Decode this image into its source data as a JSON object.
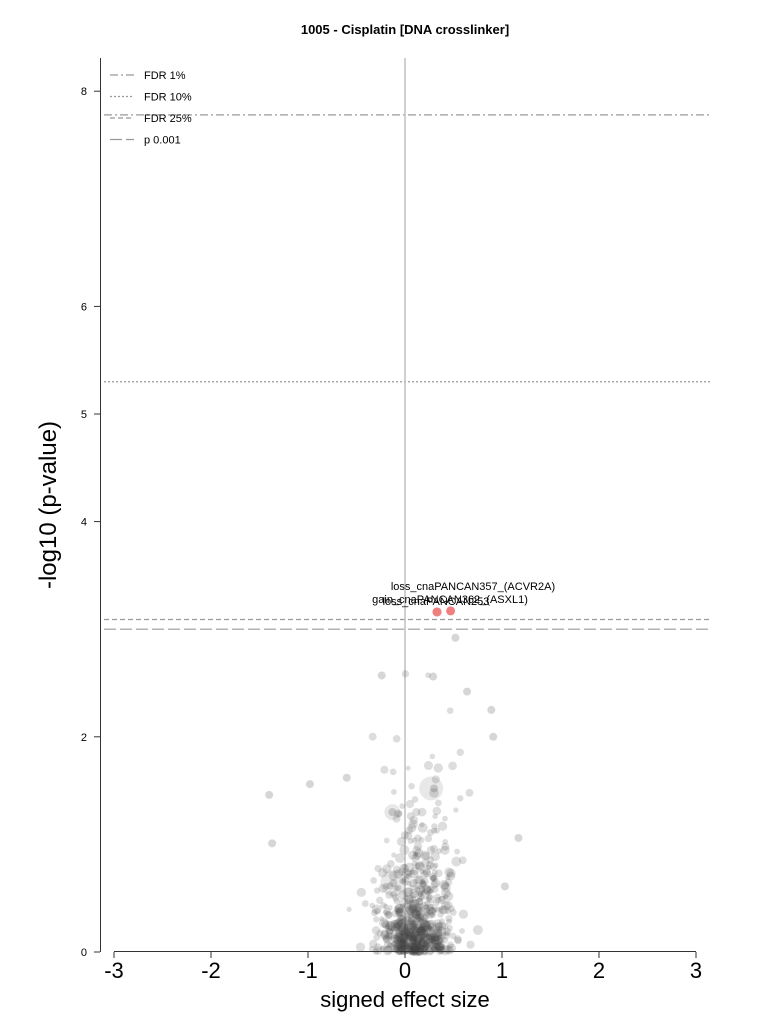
{
  "chart_data": {
    "type": "scatter",
    "title": "1005 - Cisplatin [DNA crosslinker]",
    "xlabel": "signed effect size",
    "ylabel": "-log10 (p-value)",
    "xlim": [
      -3.15,
      3.15
    ],
    "ylim": [
      0,
      8.4
    ],
    "xticks": [
      -3,
      -2,
      -1,
      0,
      1,
      2,
      3
    ],
    "xtick_labels": [
      "-3",
      "-2",
      "-1",
      "0",
      "1",
      "2",
      "3"
    ],
    "yticks": [
      0,
      2,
      4,
      5,
      6,
      8
    ],
    "ytick_labels": [
      "0",
      "2",
      "4",
      "5",
      "6",
      "8"
    ],
    "grid": false,
    "legend_position": "top-left",
    "colors": {
      "background_point": "#444444",
      "significant_point": "#f08080",
      "threshold_line": "#999999",
      "zero_line": "#c0c0c0"
    },
    "thresholds": [
      {
        "name": "FDR 1%",
        "y": 7.78,
        "style": "dashdot"
      },
      {
        "name": "FDR 10%",
        "y": 5.3,
        "style": "dotted"
      },
      {
        "name": "FDR 25%",
        "y": 3.09,
        "style": "dashed"
      },
      {
        "name": "p 0.001",
        "y": 3.0,
        "style": "longdash"
      }
    ],
    "significant_points": [
      {
        "label": "loss_cnaPANCAN357_(ACVR2A)",
        "x": 0.47,
        "y": 3.17
      },
      {
        "label": "gain_cnaPANCAN362_(ASXL1)",
        "x": 0.33,
        "y": 3.16
      },
      {
        "label": "loss_cnaPANCAN253",
        "x": 0.33,
        "y": 3.16
      }
    ],
    "notable_points": [
      {
        "x": 0.52,
        "y": 2.92
      },
      {
        "x": -0.24,
        "y": 2.57
      },
      {
        "x": 0.29,
        "y": 2.56
      },
      {
        "x": 0.64,
        "y": 2.42
      },
      {
        "x": 0.91,
        "y": 2.0
      },
      {
        "x": 0.89,
        "y": 2.25
      },
      {
        "x": -0.98,
        "y": 1.56
      },
      {
        "x": -1.4,
        "y": 1.46
      },
      {
        "x": -1.37,
        "y": 1.01
      },
      {
        "x": 1.17,
        "y": 1.06
      },
      {
        "x": 1.03,
        "y": 0.61
      },
      {
        "x": -0.6,
        "y": 1.62
      },
      {
        "x": 0.3,
        "y": 1.52
      },
      {
        "x": -0.13,
        "y": 1.3
      },
      {
        "x": -0.12,
        "y": 0.64
      }
    ]
  }
}
